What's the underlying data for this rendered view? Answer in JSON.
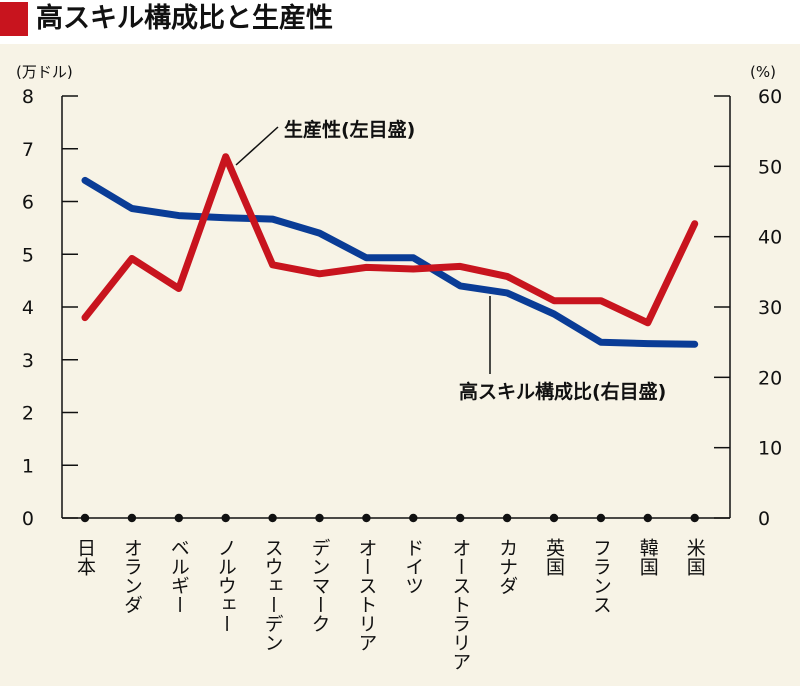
{
  "header": {
    "title": "高スキル構成比と生産性"
  },
  "chart_data": {
    "type": "line",
    "title": "高スキル構成比と生産性",
    "left_axis": {
      "unit": "(万ドル)",
      "ylim": [
        0,
        8
      ],
      "ticks": [
        "0",
        "1",
        "2",
        "3",
        "4",
        "5",
        "6",
        "7",
        "8"
      ]
    },
    "right_axis": {
      "unit": "(%)",
      "ylim": [
        0,
        60
      ],
      "ticks": [
        "0",
        "10",
        "20",
        "30",
        "40",
        "50",
        "60"
      ]
    },
    "categories": [
      "日本",
      "オランダ",
      "ベルギー",
      "ノルウェー",
      "スウェーデン",
      "デンマーク",
      "オーストリア",
      "ドイツ",
      "オーストラリア",
      "カナダ",
      "英国",
      "フランス",
      "韓国",
      "米国"
    ],
    "series": [
      {
        "name": "生産性(左目盛)",
        "axis": "left",
        "color": "#c8141e",
        "values": [
          3.8,
          4.92,
          4.35,
          6.85,
          4.8,
          4.63,
          4.75,
          4.72,
          4.77,
          4.58,
          4.12,
          4.12,
          3.7,
          5.58
        ]
      },
      {
        "name": "高スキル構成比(右目盛)",
        "axis": "right",
        "color": "#0a3c96",
        "values": [
          48.0,
          44.0,
          43.0,
          42.7,
          42.5,
          40.5,
          37.0,
          37.0,
          33.0,
          32.0,
          29.0,
          25.0,
          24.8,
          24.7
        ]
      }
    ],
    "annotations": [
      {
        "text": "生産性(左目盛)",
        "series": 0
      },
      {
        "text": "高スキル構成比(右目盛)",
        "series": 1
      }
    ],
    "grid": false
  }
}
